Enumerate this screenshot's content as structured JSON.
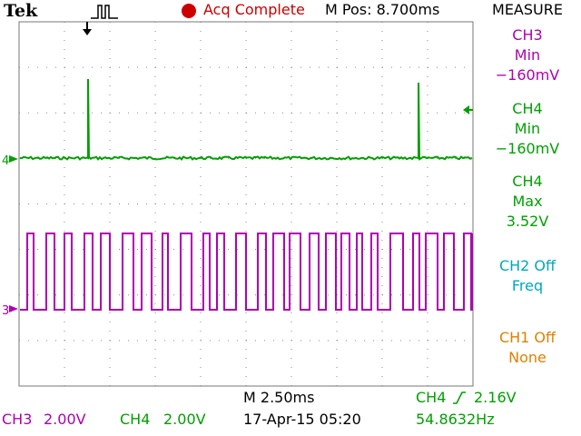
{
  "header": {
    "brand": "Tek",
    "acq_status": "Acq Complete",
    "m_pos": "M Pos: 8.700ms",
    "trigger_icon": "trigger-pulse-icon",
    "acq_indicator_color": "#cc0000"
  },
  "measure": {
    "title": "MEASURE",
    "items": [
      {
        "source": "CH3",
        "type": "Min",
        "value": "−160mV",
        "color": "#b000b0"
      },
      {
        "source": "CH4",
        "type": "Min",
        "value": "−160mV",
        "color": "#00a000"
      },
      {
        "source": "CH4",
        "type": "Max",
        "value": "3.52V",
        "color": "#00a000"
      },
      {
        "source": "CH2 Off",
        "type": "Freq",
        "value": "",
        "color": "#00a8c0"
      },
      {
        "source": "CH1 Off",
        "type": "None",
        "value": "",
        "color": "#e08000"
      }
    ]
  },
  "channels": {
    "ch3": {
      "label": "CH3",
      "scale": "2.00V",
      "marker": "3",
      "color": "#b000b0"
    },
    "ch4": {
      "label": "CH4",
      "scale": "2.00V",
      "marker": "4",
      "color": "#00a000"
    }
  },
  "timebase": {
    "scale": "M 2.50ms",
    "date_time": "17-Apr-15 05:20"
  },
  "trigger": {
    "source": "CH4",
    "level": "2.16V",
    "frequency": "54.8632Hz"
  }
}
